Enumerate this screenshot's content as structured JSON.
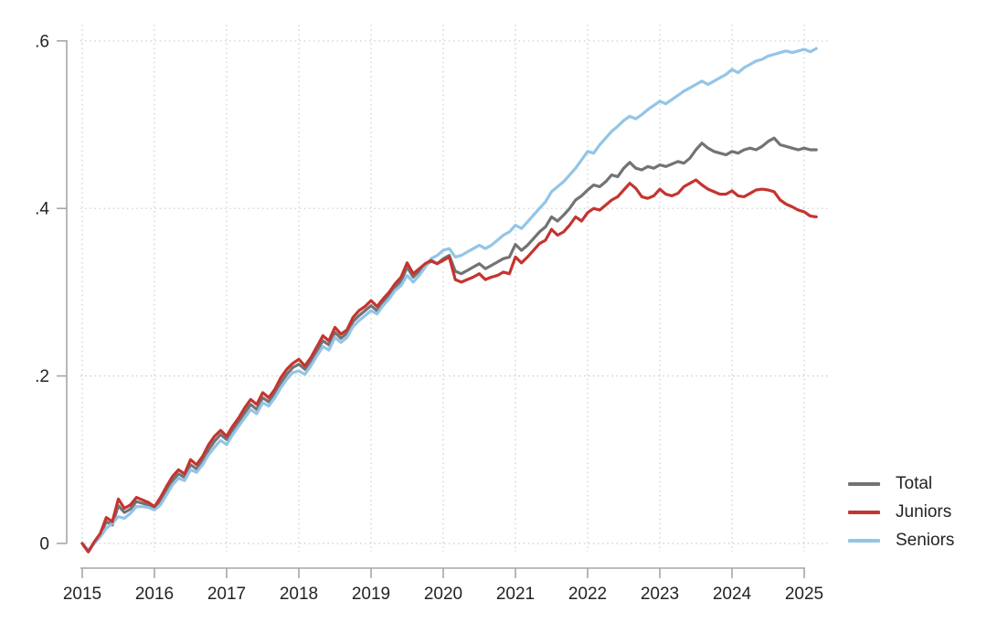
{
  "figure": {
    "background": "#ffffff",
    "description": "Dotted-grid line chart of cumulative growth for Total, Juniors and Seniors, 2015 to early 2025"
  },
  "chart_data": {
    "type": "line",
    "title": "",
    "xlabel": "",
    "ylabel": "",
    "x_unit": "monthly",
    "x_range": [
      "2015-01",
      "2025-03"
    ],
    "ylim": [
      -0.03,
      0.63
    ],
    "grid": "dotted",
    "axis_color": "#a6a6a6",
    "grid_color": "#cbcbcb",
    "text_color": "#232323",
    "x_tick_labels": [
      "2015",
      "2016",
      "2017",
      "2018",
      "2019",
      "2020",
      "2021",
      "2022",
      "2023",
      "2024",
      "2025"
    ],
    "y_ticks": [
      {
        "label": "0",
        "value": 0
      },
      {
        "label": ".2",
        "value": 0.2
      },
      {
        "label": ".4",
        "value": 0.4
      },
      {
        "label": ".6",
        "value": 0.6
      }
    ],
    "legend": {
      "position": "right",
      "entries": [
        "Total",
        "Juniors",
        "Seniors"
      ]
    },
    "series": [
      {
        "name": "Total",
        "color": "#737373",
        "values": [
          0.0,
          -0.01,
          0.001,
          0.01,
          0.026,
          0.022,
          0.045,
          0.037,
          0.041,
          0.05,
          0.048,
          0.046,
          0.042,
          0.05,
          0.063,
          0.075,
          0.083,
          0.079,
          0.094,
          0.089,
          0.099,
          0.112,
          0.122,
          0.13,
          0.124,
          0.135,
          0.145,
          0.156,
          0.166,
          0.16,
          0.174,
          0.169,
          0.179,
          0.192,
          0.202,
          0.21,
          0.214,
          0.208,
          0.218,
          0.23,
          0.242,
          0.237,
          0.252,
          0.245,
          0.251,
          0.265,
          0.272,
          0.278,
          0.284,
          0.278,
          0.288,
          0.296,
          0.306,
          0.313,
          0.33,
          0.318,
          0.325,
          0.332,
          0.337,
          0.334,
          0.34,
          0.344,
          0.325,
          0.322,
          0.326,
          0.33,
          0.334,
          0.328,
          0.332,
          0.336,
          0.34,
          0.342,
          0.357,
          0.35,
          0.356,
          0.364,
          0.372,
          0.378,
          0.39,
          0.385,
          0.392,
          0.4,
          0.41,
          0.415,
          0.422,
          0.428,
          0.426,
          0.432,
          0.44,
          0.438,
          0.448,
          0.455,
          0.448,
          0.446,
          0.45,
          0.448,
          0.452,
          0.45,
          0.453,
          0.456,
          0.454,
          0.46,
          0.47,
          0.478,
          0.472,
          0.468,
          0.466,
          0.464,
          0.468,
          0.466,
          0.47,
          0.472,
          0.47,
          0.474,
          0.48,
          0.484,
          0.476,
          0.474,
          0.472,
          0.47,
          0.472,
          0.47,
          0.47
        ]
      },
      {
        "name": "Juniors",
        "color": "#c43531",
        "values": [
          0.0,
          -0.01,
          0.002,
          0.012,
          0.031,
          0.026,
          0.053,
          0.042,
          0.046,
          0.055,
          0.052,
          0.049,
          0.044,
          0.055,
          0.068,
          0.08,
          0.088,
          0.083,
          0.1,
          0.094,
          0.104,
          0.118,
          0.128,
          0.135,
          0.128,
          0.14,
          0.15,
          0.162,
          0.172,
          0.166,
          0.18,
          0.174,
          0.184,
          0.198,
          0.208,
          0.215,
          0.22,
          0.212,
          0.222,
          0.235,
          0.248,
          0.242,
          0.258,
          0.25,
          0.255,
          0.27,
          0.278,
          0.283,
          0.29,
          0.283,
          0.292,
          0.3,
          0.31,
          0.318,
          0.335,
          0.322,
          0.328,
          0.334,
          0.338,
          0.334,
          0.338,
          0.342,
          0.315,
          0.312,
          0.315,
          0.318,
          0.322,
          0.315,
          0.318,
          0.32,
          0.324,
          0.322,
          0.342,
          0.335,
          0.342,
          0.35,
          0.358,
          0.362,
          0.375,
          0.368,
          0.372,
          0.38,
          0.39,
          0.385,
          0.395,
          0.4,
          0.398,
          0.404,
          0.41,
          0.414,
          0.422,
          0.43,
          0.424,
          0.414,
          0.412,
          0.415,
          0.423,
          0.417,
          0.415,
          0.418,
          0.426,
          0.43,
          0.434,
          0.428,
          0.423,
          0.42,
          0.417,
          0.417,
          0.421,
          0.415,
          0.414,
          0.418,
          0.422,
          0.423,
          0.422,
          0.42,
          0.41,
          0.405,
          0.402,
          0.398,
          0.396,
          0.391,
          0.39
        ]
      },
      {
        "name": "Seniors",
        "color": "#93c5e7",
        "values": [
          0.0,
          -0.008,
          0.0,
          0.008,
          0.018,
          0.024,
          0.032,
          0.03,
          0.036,
          0.044,
          0.044,
          0.043,
          0.04,
          0.046,
          0.058,
          0.07,
          0.078,
          0.075,
          0.088,
          0.085,
          0.094,
          0.106,
          0.115,
          0.123,
          0.118,
          0.13,
          0.14,
          0.15,
          0.16,
          0.155,
          0.168,
          0.164,
          0.174,
          0.186,
          0.196,
          0.204,
          0.206,
          0.202,
          0.212,
          0.224,
          0.235,
          0.231,
          0.246,
          0.24,
          0.246,
          0.259,
          0.266,
          0.272,
          0.278,
          0.274,
          0.284,
          0.292,
          0.302,
          0.308,
          0.32,
          0.312,
          0.32,
          0.33,
          0.34,
          0.344,
          0.35,
          0.352,
          0.342,
          0.344,
          0.348,
          0.352,
          0.356,
          0.352,
          0.356,
          0.362,
          0.368,
          0.372,
          0.38,
          0.376,
          0.384,
          0.392,
          0.4,
          0.408,
          0.42,
          0.426,
          0.432,
          0.44,
          0.448,
          0.458,
          0.468,
          0.466,
          0.476,
          0.484,
          0.492,
          0.498,
          0.505,
          0.51,
          0.507,
          0.512,
          0.518,
          0.523,
          0.528,
          0.525,
          0.53,
          0.535,
          0.54,
          0.544,
          0.548,
          0.552,
          0.548,
          0.552,
          0.556,
          0.56,
          0.566,
          0.562,
          0.568,
          0.572,
          0.576,
          0.578,
          0.582,
          0.584,
          0.586,
          0.588,
          0.586,
          0.588,
          0.59,
          0.587,
          0.591
        ]
      }
    ]
  }
}
